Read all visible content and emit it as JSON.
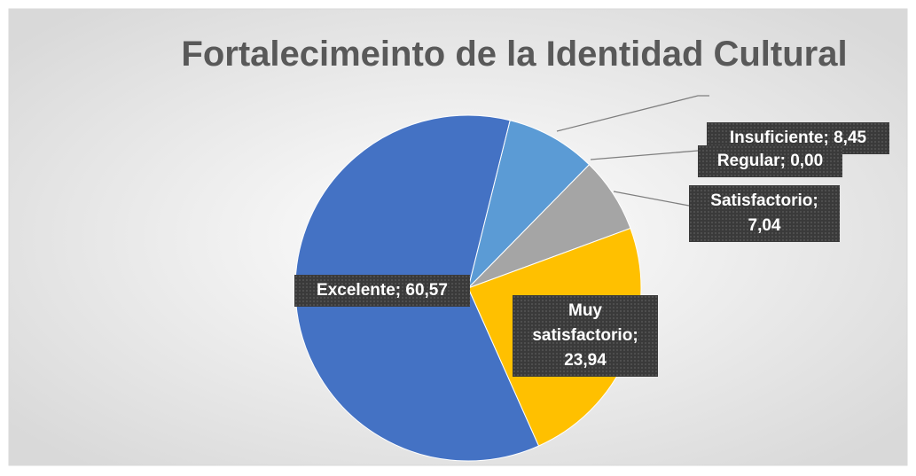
{
  "chart_data": {
    "type": "pie",
    "title": "Fortalecimeinto de la Identidad Cultural",
    "categories": [
      "Insuficiente",
      "Regular",
      "Satisfactorio",
      "Muy satisfactorio",
      "Excelente"
    ],
    "values": [
      8.45,
      0.0,
      7.04,
      23.94,
      60.57
    ],
    "value_labels": [
      "8,45",
      "0,00",
      "7,04",
      "23,94",
      "60,57"
    ],
    "label_separator": "; ",
    "colors": [
      "#5b9bd5",
      "#ed7d31",
      "#a5a5a5",
      "#ffc000",
      "#4472c4"
    ]
  }
}
